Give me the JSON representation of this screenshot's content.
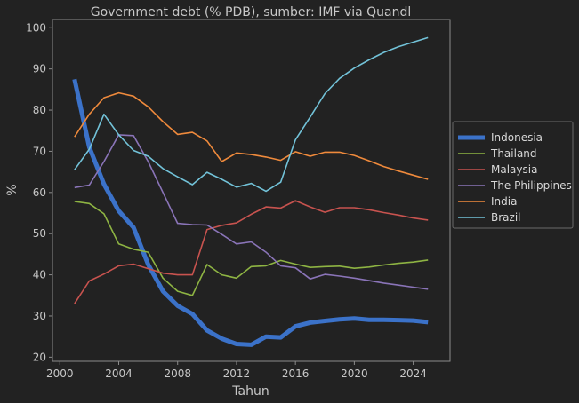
{
  "chart_data": {
    "type": "line",
    "title": "Government debt (% PDB), sumber: IMF via Quandl",
    "xlabel": "Tahun",
    "ylabel": "%",
    "xlim": [
      1999.5,
      2026.5
    ],
    "ylim": [
      19,
      102
    ],
    "xticks": [
      2000,
      2004,
      2008,
      2012,
      2016,
      2020,
      2024
    ],
    "yticks": [
      20,
      30,
      40,
      50,
      60,
      70,
      80,
      90,
      100
    ],
    "grid": false,
    "legend_position": "right",
    "x": [
      2001,
      2002,
      2003,
      2004,
      2005,
      2006,
      2007,
      2008,
      2009,
      2010,
      2011,
      2012,
      2013,
      2014,
      2015,
      2016,
      2017,
      2018,
      2019,
      2020,
      2021,
      2022,
      2023,
      2024,
      2025
    ],
    "series": [
      {
        "name": "Indonesia",
        "color": "#3b72c9",
        "bold": true,
        "values": [
          87.5,
          71,
          62,
          55.5,
          51.5,
          42.5,
          36,
          32.5,
          30.5,
          26.5,
          24.5,
          23.2,
          23,
          25,
          24.8,
          27.5,
          28.4,
          28.8,
          29.2,
          29.4,
          29.1,
          29.1,
          29,
          28.9,
          28.5
        ]
      },
      {
        "name": "Thailand",
        "color": "#8eb443",
        "values": [
          57.8,
          57.3,
          54.8,
          47.5,
          46.2,
          45.5,
          39.2,
          36,
          35,
          42.5,
          40,
          39.2,
          42,
          42.2,
          43.5,
          42.6,
          41.8,
          42,
          42.1,
          41.6,
          41.9,
          42.4,
          42.8,
          43.1,
          43.6
        ]
      },
      {
        "name": "Malaysia",
        "color": "#c8534f",
        "values": [
          33,
          38.5,
          40.2,
          42.2,
          42.6,
          41.5,
          40.4,
          40,
          40,
          51,
          52,
          52.6,
          54.7,
          56.5,
          56.2,
          58,
          56.5,
          55.2,
          56.3,
          56.3,
          55.8,
          55.1,
          54.5,
          53.8,
          53.3
        ]
      },
      {
        "name": "The Philippines",
        "color": "#8a74b8",
        "values": [
          61.2,
          61.8,
          67.5,
          74,
          73.8,
          67.5,
          60,
          52.5,
          52.2,
          52.1,
          49.8,
          47.5,
          48,
          45.5,
          42.2,
          41.7,
          39,
          40.1,
          39.7,
          39.2,
          38.6,
          38,
          37.5,
          37,
          36.5
        ]
      },
      {
        "name": "India",
        "color": "#ef8a3c",
        "values": [
          73.5,
          79,
          83,
          84.2,
          83.4,
          80.8,
          77.2,
          74.1,
          74.6,
          72.5,
          67.5,
          69.6,
          69.2,
          68.6,
          67.8,
          69.9,
          68.8,
          69.8,
          69.8,
          69,
          67.7,
          66.3,
          65.2,
          64.2,
          63.2
        ]
      },
      {
        "name": "Brazil",
        "color": "#72c2d8",
        "values": [
          65.5,
          70.5,
          79,
          74,
          70.2,
          68.8,
          65.8,
          63.8,
          61.9,
          64.9,
          63.2,
          61.3,
          62.2,
          60.3,
          62.5,
          72.8,
          78.3,
          84,
          87.7,
          90.2,
          92.2,
          94,
          95.4,
          96.5,
          97.6
        ]
      }
    ]
  }
}
